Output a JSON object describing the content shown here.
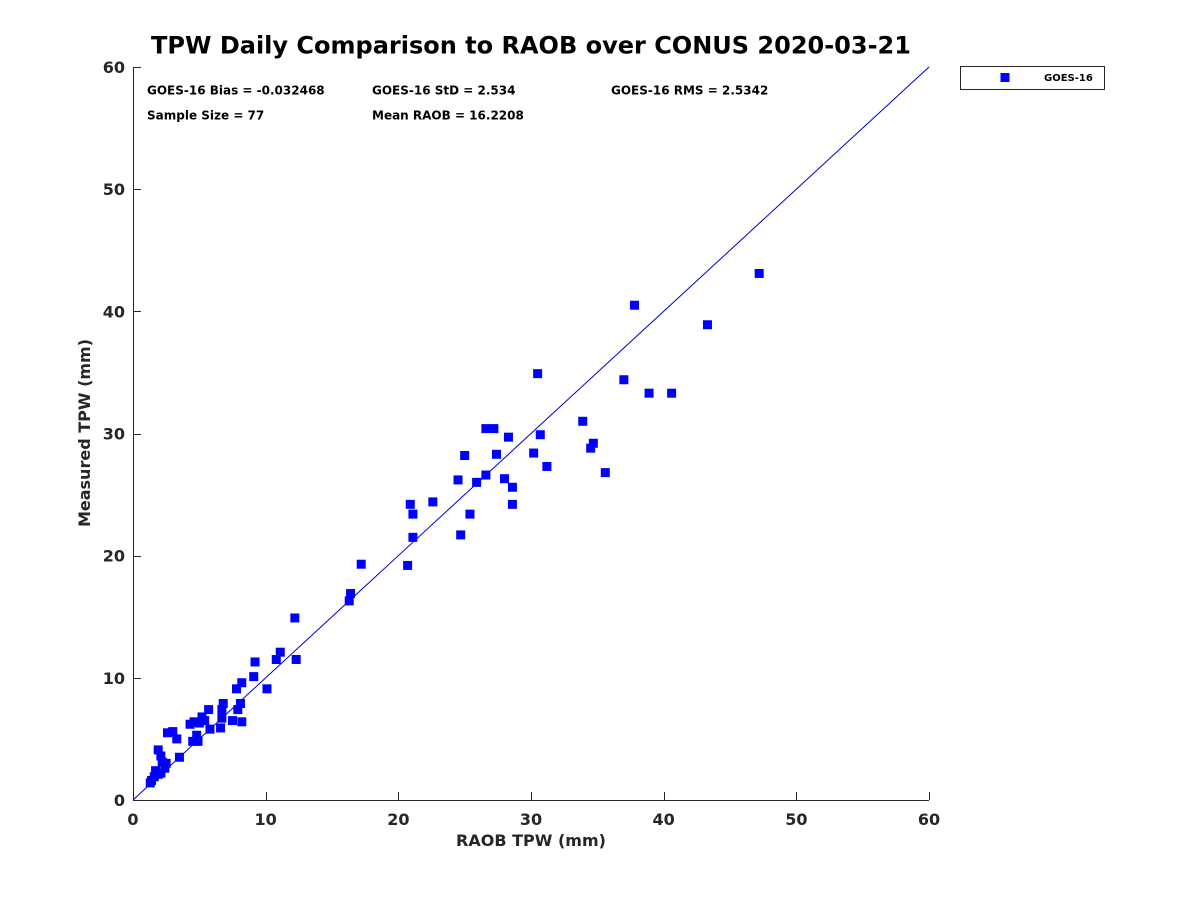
{
  "chart_data": {
    "type": "scatter",
    "title": "TPW Daily Comparison to RAOB over CONUS 2020-03-21",
    "xlabel": "RAOB TPW (mm)",
    "ylabel": "Measured TPW (mm)",
    "xlim": [
      0,
      60
    ],
    "ylim": [
      0,
      60
    ],
    "xticks": [
      "0",
      "10",
      "20",
      "30",
      "40",
      "50",
      "60"
    ],
    "yticks": [
      "0",
      "10",
      "20",
      "30",
      "40",
      "50",
      "60"
    ],
    "grid": false,
    "legend_position": "outside-top-right",
    "reference_line": {
      "from": [
        0,
        0
      ],
      "to": [
        60,
        60
      ],
      "color": "#0000cc"
    },
    "stats": {
      "bias": "GOES-16 Bias = -0.032468",
      "std": "GOES-16 StD = 2.534",
      "rms": "GOES-16 RMS = 2.5342",
      "sample_size": "Sample Size = 77",
      "mean_raob": "Mean RAOB = 16.2208"
    },
    "series": [
      {
        "name": "GOES-16",
        "color": "#0000ff",
        "marker": "square",
        "points": [
          [
            1.3,
            1.4
          ],
          [
            1.4,
            1.6
          ],
          [
            1.6,
            1.9
          ],
          [
            1.7,
            2.4
          ],
          [
            1.9,
            2.1
          ],
          [
            1.9,
            4.1
          ],
          [
            2.1,
            2.2
          ],
          [
            2.1,
            3.6
          ],
          [
            2.2,
            3.1
          ],
          [
            2.4,
            2.6
          ],
          [
            2.5,
            3.0
          ],
          [
            2.6,
            5.5
          ],
          [
            3.0,
            5.6
          ],
          [
            3.3,
            5.0
          ],
          [
            3.5,
            3.5
          ],
          [
            4.3,
            6.2
          ],
          [
            4.5,
            4.8
          ],
          [
            4.6,
            6.4
          ],
          [
            4.8,
            5.3
          ],
          [
            4.9,
            4.8
          ],
          [
            5.0,
            6.3
          ],
          [
            5.2,
            6.8
          ],
          [
            5.4,
            6.5
          ],
          [
            5.7,
            7.4
          ],
          [
            5.8,
            5.8
          ],
          [
            6.6,
            5.9
          ],
          [
            6.7,
            6.7
          ],
          [
            6.7,
            7.4
          ],
          [
            6.8,
            7.9
          ],
          [
            7.5,
            6.5
          ],
          [
            7.8,
            9.1
          ],
          [
            7.9,
            7.4
          ],
          [
            8.1,
            7.9
          ],
          [
            8.2,
            9.6
          ],
          [
            8.2,
            6.4
          ],
          [
            9.1,
            10.1
          ],
          [
            9.2,
            11.3
          ],
          [
            10.1,
            9.1
          ],
          [
            10.8,
            11.5
          ],
          [
            11.1,
            12.1
          ],
          [
            12.2,
            14.9
          ],
          [
            12.3,
            11.5
          ],
          [
            16.3,
            16.3
          ],
          [
            16.4,
            16.9
          ],
          [
            17.2,
            19.3
          ],
          [
            20.7,
            19.2
          ],
          [
            20.9,
            24.2
          ],
          [
            21.1,
            23.4
          ],
          [
            21.1,
            21.5
          ],
          [
            22.6,
            24.4
          ],
          [
            24.5,
            26.2
          ],
          [
            24.7,
            21.7
          ],
          [
            25.0,
            28.2
          ],
          [
            25.4,
            23.4
          ],
          [
            25.9,
            26.0
          ],
          [
            26.6,
            26.6
          ],
          [
            26.6,
            30.4
          ],
          [
            27.2,
            30.4
          ],
          [
            27.4,
            28.3
          ],
          [
            28.0,
            26.3
          ],
          [
            28.3,
            29.7
          ],
          [
            28.6,
            24.2
          ],
          [
            28.6,
            25.6
          ],
          [
            30.2,
            28.4
          ],
          [
            30.5,
            34.9
          ],
          [
            30.7,
            29.9
          ],
          [
            31.2,
            27.3
          ],
          [
            33.9,
            31.0
          ],
          [
            34.5,
            28.8
          ],
          [
            34.7,
            29.2
          ],
          [
            35.6,
            26.8
          ],
          [
            37.0,
            34.4
          ],
          [
            37.8,
            40.5
          ],
          [
            38.9,
            33.3
          ],
          [
            40.6,
            33.3
          ],
          [
            43.3,
            38.9
          ],
          [
            47.2,
            43.1
          ]
        ]
      }
    ]
  }
}
